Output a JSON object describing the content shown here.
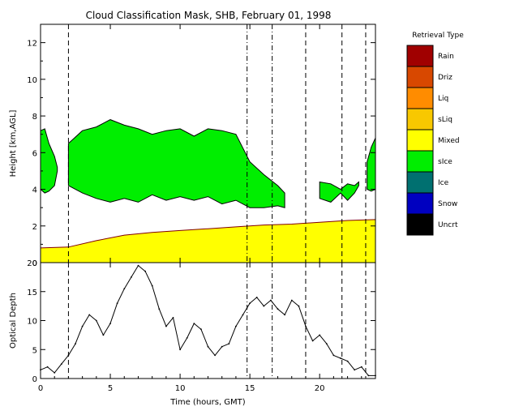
{
  "chart_data": [
    {
      "type": "heatmap",
      "title": "Cloud Classification Mask, SHB, February 01, 1998",
      "xlabel": "",
      "ylabel": "Height [km,AGL]",
      "xlim": [
        0,
        24
      ],
      "ylim": [
        0,
        13
      ],
      "yticks": [
        0,
        2,
        4,
        6,
        8,
        10,
        12
      ],
      "legend": {
        "title": "Retrieval Type",
        "placement": "right",
        "entries": [
          {
            "label": "Rain",
            "color": "#a00000"
          },
          {
            "label": "Driz",
            "color": "#d84800"
          },
          {
            "label": "Liq",
            "color": "#ff8c00"
          },
          {
            "label": "sLiq",
            "color": "#f8c800"
          },
          {
            "label": "Mixed",
            "color": "#ffff00"
          },
          {
            "label": "sIce",
            "color": "#00ee00"
          },
          {
            "label": "Ice",
            "color": "#007070"
          },
          {
            "label": "Snow",
            "color": "#0000c0"
          },
          {
            "label": "Uncrt",
            "color": "#000000"
          }
        ]
      },
      "regions": [
        {
          "class": "Mixed",
          "x": [
            0,
            2,
            4,
            6,
            8,
            10,
            12,
            14,
            16,
            18,
            20,
            22,
            24
          ],
          "base": [
            0,
            0,
            0,
            0,
            0,
            0,
            0,
            0,
            0,
            0,
            0,
            0,
            0
          ],
          "top": [
            0.8,
            0.85,
            1.2,
            1.5,
            1.65,
            1.75,
            1.85,
            1.95,
            2.05,
            2.1,
            2.2,
            2.3,
            2.35
          ]
        },
        {
          "class": "sIce",
          "x": [
            0,
            0.3,
            0.6,
            1.0,
            1.2
          ],
          "base": [
            4.0,
            3.8,
            3.9,
            4.2,
            5.0
          ],
          "top": [
            7.2,
            7.3,
            6.5,
            5.8,
            5.2
          ]
        },
        {
          "class": "sIce",
          "x": [
            2.0,
            3.0,
            4.0,
            5.0,
            6.0,
            7.0,
            8.0,
            9.0,
            10.0,
            11.0,
            12.0,
            13.0,
            14.0,
            15.0,
            16.0,
            17.0,
            17.5
          ],
          "base": [
            4.2,
            3.8,
            3.5,
            3.3,
            3.5,
            3.3,
            3.7,
            3.4,
            3.6,
            3.4,
            3.6,
            3.2,
            3.4,
            3.0,
            3.0,
            3.1,
            3.0
          ],
          "top": [
            6.5,
            7.2,
            7.4,
            7.8,
            7.5,
            7.3,
            7.0,
            7.2,
            7.3,
            6.9,
            7.3,
            7.2,
            7.0,
            5.5,
            4.8,
            4.2,
            3.8
          ]
        },
        {
          "class": "sIce",
          "x": [
            20.0,
            20.8,
            21.5,
            22.0,
            22.5,
            22.8
          ],
          "base": [
            3.5,
            3.3,
            3.8,
            3.4,
            3.8,
            4.2
          ],
          "top": [
            4.4,
            4.3,
            4.0,
            4.3,
            4.2,
            4.4
          ]
        },
        {
          "class": "sIce",
          "x": [
            23.4,
            23.7,
            24.0
          ],
          "base": [
            4.0,
            3.9,
            4.0
          ],
          "top": [
            5.5,
            6.3,
            6.8
          ]
        }
      ],
      "markers": [
        {
          "x": 2.0,
          "style": "dashed"
        },
        {
          "x": 14.8,
          "style": "dashdot"
        },
        {
          "x": 16.6,
          "style": "dashdot"
        },
        {
          "x": 19.0,
          "style": "dashed"
        },
        {
          "x": 21.6,
          "style": "dashed"
        },
        {
          "x": 23.3,
          "style": "dashed"
        }
      ]
    },
    {
      "type": "line",
      "xlabel": "Time (hours, GMT)",
      "ylabel": "Optical Depth",
      "xlim": [
        0,
        24
      ],
      "ylim": [
        0,
        20
      ],
      "xticks": [
        0,
        5,
        10,
        15,
        20
      ],
      "yticks": [
        0,
        5,
        10,
        15,
        20
      ],
      "series": [
        {
          "x": [
            0,
            0.5,
            1.0,
            1.5,
            2.0,
            2.5,
            3.0,
            3.5,
            4.0,
            4.5,
            5.0,
            5.5,
            6.0,
            6.5,
            7.0,
            7.5,
            8.0,
            8.5,
            9.0,
            9.5,
            10.0,
            10.5,
            11.0,
            11.5,
            12.0,
            12.5,
            13.0,
            13.5,
            14.0,
            14.5,
            15.0,
            15.5,
            16.0,
            16.5,
            17.0,
            17.5,
            18.0,
            18.5,
            19.0,
            19.5,
            20.0,
            20.5,
            21.0,
            21.5,
            22.0,
            22.5,
            23.0,
            23.5,
            24.0
          ],
          "values": [
            1.5,
            2.0,
            1.0,
            2.5,
            4.0,
            6.0,
            9.0,
            11.0,
            10.0,
            7.5,
            9.5,
            13.0,
            15.5,
            17.5,
            19.5,
            18.5,
            16.0,
            12.0,
            9.0,
            10.5,
            5.0,
            7.0,
            9.5,
            8.5,
            5.5,
            4.0,
            5.5,
            6.0,
            9.0,
            11.0,
            13.0,
            14.0,
            12.5,
            13.5,
            12.0,
            11.0,
            13.5,
            12.5,
            9.0,
            6.5,
            7.5,
            6.0,
            4.0,
            3.5,
            3.0,
            1.5,
            2.0,
            0.5,
            0.5
          ]
        }
      ],
      "markers": [
        {
          "x": 2.0,
          "style": "dashed"
        },
        {
          "x": 14.8,
          "style": "dashdot"
        },
        {
          "x": 16.6,
          "style": "dashdot"
        },
        {
          "x": 19.0,
          "style": "dashed"
        },
        {
          "x": 21.6,
          "style": "dashed"
        },
        {
          "x": 23.3,
          "style": "dashed"
        }
      ]
    }
  ]
}
